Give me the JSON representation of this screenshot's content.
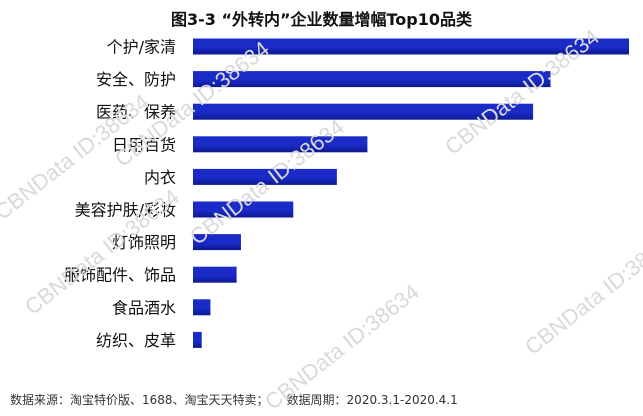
{
  "chart_data": {
    "type": "bar",
    "orientation": "horizontal",
    "title": "图3-3 “外转内”企业数量增幅Top10品类",
    "categories": [
      "个护/家清",
      "安全、防护",
      "医药、保养",
      "日用百货",
      "内衣",
      "美容护肤/彩妆",
      "灯饰照明",
      "服饰配件、饰品",
      "食品酒水",
      "纺织、皮革"
    ],
    "values": [
      100,
      82,
      78,
      40,
      33,
      23,
      11,
      10,
      4,
      2
    ],
    "xlim": [
      0,
      100
    ],
    "grid": false,
    "legend": "none",
    "bar_color": "#1a2bc8",
    "bar_color_dark": "#0d1890"
  },
  "source": {
    "label": "数据来源：淘宝特价版、1688、淘宝天天特卖；",
    "period": "数据周期：2020.3.1-2020.4.1"
  },
  "watermark_text": "CBNData ID:38634"
}
